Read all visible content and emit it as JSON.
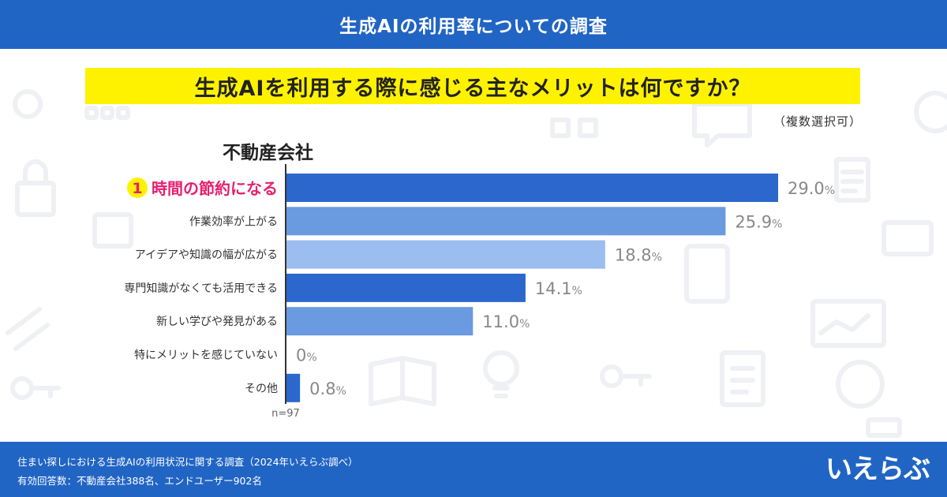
{
  "header": {
    "title": "生成AIの利用率についての調査"
  },
  "question": {
    "text": "生成AIを利用する際に感じる主なメリットは何ですか？"
  },
  "note": "（複数選択可）",
  "segment": "不動産会社",
  "rank_badge": "1",
  "chart_data": {
    "type": "bar",
    "orientation": "horizontal",
    "categories": [
      "時間の節約になる",
      "作業効率が上がる",
      "アイデアや知識の幅が広がる",
      "専門知識がなくても活用できる",
      "新しい学びや発見がある",
      "特にメリットを感じていない",
      "その他"
    ],
    "values": [
      29.0,
      25.9,
      18.8,
      14.1,
      11.0,
      0,
      0.8
    ],
    "value_labels": [
      "29.0",
      "25.9",
      "18.8",
      "14.1",
      "11.0",
      "0",
      "0.8"
    ],
    "unit": "%",
    "colors": [
      "#2b67cc",
      "#6a9ae0",
      "#9cbdef",
      "#2b67cc",
      "#6a9ae0",
      "#9cbdef",
      "#2b67cc"
    ],
    "highlight_color": "#e5206f",
    "xlim": [
      0,
      29.0
    ],
    "sample_size": "n=97"
  },
  "footer": {
    "source": "住まい探しにおける生成AIの利用状況に関する調査（2024年いえらぶ調べ）",
    "respondents": "有効回答数：不動産会社388名、エンドユーザー902名",
    "logo": "いえらぶ"
  }
}
